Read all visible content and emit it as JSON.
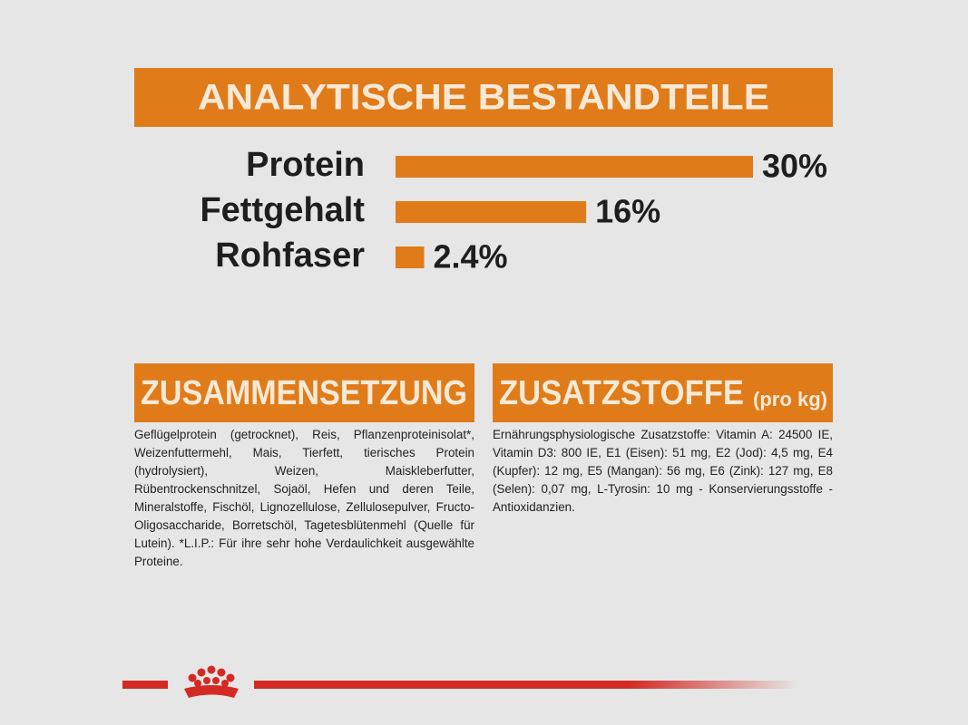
{
  "chart_data": {
    "type": "bar",
    "orientation": "horizontal",
    "title": "ANALYTISCHE BESTANDTEILE",
    "categories": [
      "Protein",
      "Fettgehalt",
      "Rohfaser"
    ],
    "values": [
      30,
      16,
      2.4
    ],
    "value_labels": [
      "30%",
      "16%",
      "2.4%"
    ],
    "color": "#e07b1a"
  },
  "composition": {
    "title": "ZUSAMMENSETZUNG",
    "text": "Geflügelprotein (getrocknet), Reis, Pflanzenproteinisolat*, Weizenfuttermehl, Mais, Tierfett, tierisches Protein (hydrolysiert), Weizen, Maiskleberfutter, Rübentrockenschnitzel, Sojaöl, Hefen und deren Teile, Mineralstoffe, Fischöl, Lignozellulose, Zellulosepulver, Fructo-Oligosaccharide, Borretschöl, Tagetesblütenmehl (Quelle für Lutein). *L.I.P.: Für ihre sehr hohe Verdaulichkeit ausgewählte Proteine."
  },
  "additives": {
    "title": "ZUSATZSTOFFE",
    "title_suffix": "(pro kg)",
    "text": "Ernährungsphysiologische Zusatzstoffe: Vitamin A: 24500 IE, Vitamin D3: 800 IE, E1 (Eisen): 51 mg, E2 (Jod): 4,5 mg, E4 (Kupfer): 12 mg, E5 (Mangan): 56 mg, E6 (Zink): 127 mg, E8 (Selen): 0,07 mg, L-Tyrosin: 10 mg - Konservierungsstoffe - Antioxidanzien."
  }
}
